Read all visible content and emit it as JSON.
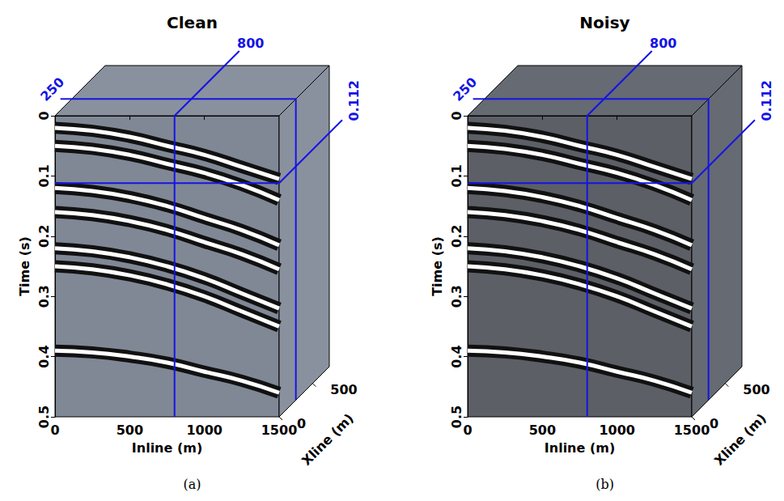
{
  "chart_data": [
    {
      "type": "line",
      "title": "Clean",
      "caption": "(a)",
      "x_label": "Inline (m)",
      "y_label": "Time (s)",
      "xlim": [
        0,
        1500
      ],
      "xticks": [
        0,
        500,
        1000,
        1500
      ],
      "ylim": [
        0,
        0.5
      ],
      "yticks": [
        0,
        0.1,
        0.2,
        0.3,
        0.4,
        0.5
      ],
      "xline_label": "Xline (m)",
      "xline_lim": [
        0,
        750
      ],
      "xline_ticks": [
        0,
        500
      ],
      "slices": {
        "inline": 800,
        "xline": 250,
        "time": 0.112
      },
      "grid": false,
      "x": [
        0,
        250,
        500,
        750,
        1000,
        1250,
        1500
      ],
      "series": [
        {
          "values": [
            0.02,
            0.025,
            0.035,
            0.05,
            0.065,
            0.085,
            0.105
          ]
        },
        {
          "values": [
            0.05,
            0.055,
            0.065,
            0.08,
            0.095,
            0.115,
            0.14
          ]
        },
        {
          "values": [
            0.12,
            0.125,
            0.135,
            0.15,
            0.17,
            0.19,
            0.215
          ]
        },
        {
          "values": [
            0.16,
            0.165,
            0.175,
            0.19,
            0.21,
            0.23,
            0.255
          ]
        },
        {
          "values": [
            0.22,
            0.225,
            0.235,
            0.25,
            0.27,
            0.295,
            0.32
          ]
        },
        {
          "values": [
            0.25,
            0.255,
            0.265,
            0.28,
            0.3,
            0.325,
            0.35
          ]
        },
        {
          "values": [
            0.39,
            0.393,
            0.4,
            0.41,
            0.425,
            0.44,
            0.46
          ]
        }
      ]
    },
    {
      "type": "line",
      "title": "Noisy",
      "caption": "(b)",
      "x_label": "Inline (m)",
      "y_label": "Time (s)",
      "xlim": [
        0,
        1500
      ],
      "xticks": [
        0,
        500,
        1000,
        1500
      ],
      "ylim": [
        0,
        0.5
      ],
      "yticks": [
        0,
        0.1,
        0.2,
        0.3,
        0.4,
        0.5
      ],
      "xline_label": "Xline (m)",
      "xline_lim": [
        0,
        750
      ],
      "xline_ticks": [
        0,
        500
      ],
      "slices": {
        "inline": 800,
        "xline": 250,
        "time": 0.112
      },
      "grid": false,
      "x": [
        0,
        250,
        500,
        750,
        1000,
        1250,
        1500
      ],
      "series": [
        {
          "values": [
            0.02,
            0.025,
            0.035,
            0.05,
            0.065,
            0.085,
            0.105
          ]
        },
        {
          "values": [
            0.05,
            0.055,
            0.065,
            0.08,
            0.095,
            0.115,
            0.14
          ]
        },
        {
          "values": [
            0.12,
            0.125,
            0.135,
            0.15,
            0.17,
            0.19,
            0.215
          ]
        },
        {
          "values": [
            0.16,
            0.165,
            0.175,
            0.19,
            0.21,
            0.23,
            0.255
          ]
        },
        {
          "values": [
            0.22,
            0.225,
            0.235,
            0.25,
            0.27,
            0.295,
            0.32
          ]
        },
        {
          "values": [
            0.25,
            0.255,
            0.265,
            0.28,
            0.3,
            0.325,
            0.35
          ]
        },
        {
          "values": [
            0.39,
            0.393,
            0.4,
            0.41,
            0.425,
            0.44,
            0.46
          ]
        }
      ]
    }
  ]
}
